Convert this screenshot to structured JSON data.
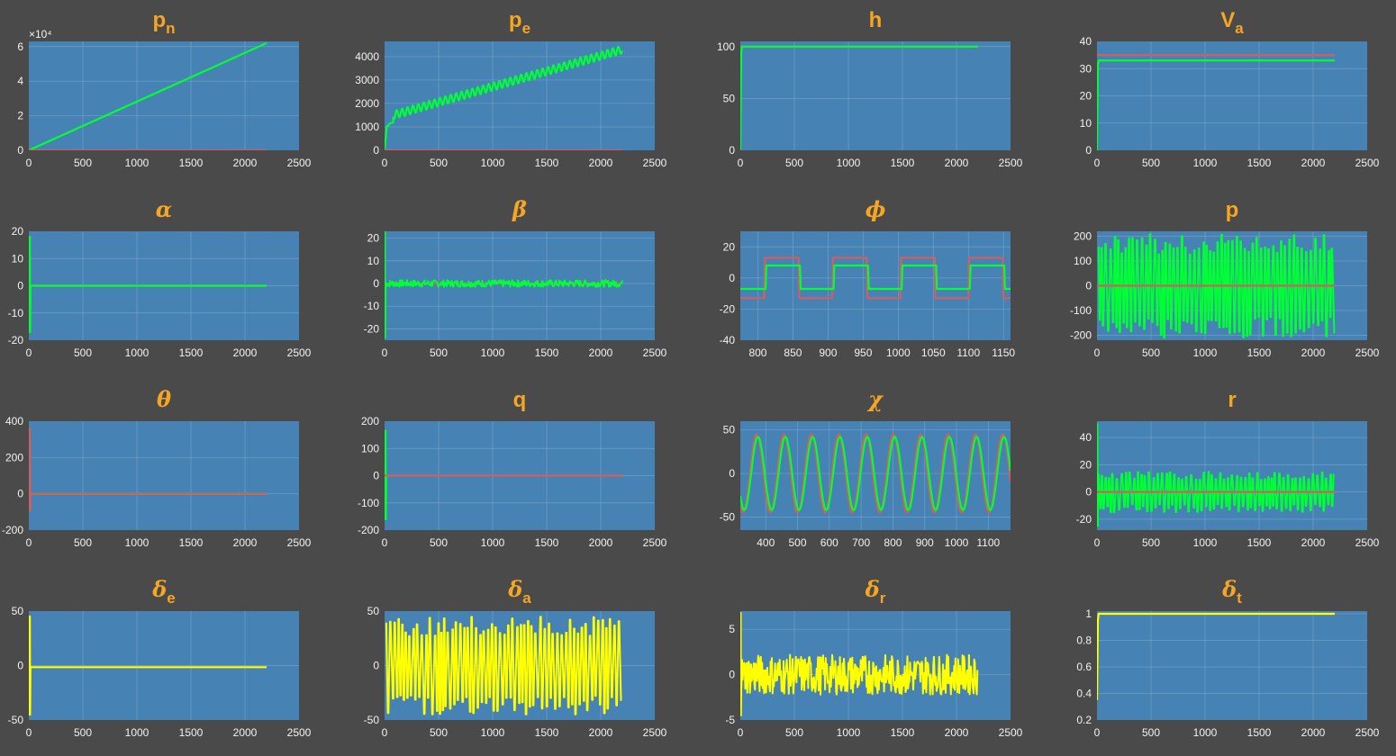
{
  "colors": {
    "background": "#4a4a4a",
    "axes": "#4682b4",
    "title": "#f5a623",
    "state": "#00ff33",
    "commanded": "#d06060",
    "input": "#ffff00"
  },
  "chart_data": [
    {
      "id": "pn",
      "type": "line",
      "title": "p",
      "title_sub": "n",
      "exponent_label": "×10⁴",
      "xlim": [
        0,
        2500
      ],
      "xticks": [
        "0",
        "500",
        "1000",
        "1500",
        "2000",
        "2500"
      ],
      "ylim": [
        0,
        6.3
      ],
      "yticks": [
        "0",
        "2",
        "4",
        "6"
      ],
      "series": [
        {
          "role": "actual",
          "kind": "ramp",
          "x": [
            0,
            2200
          ],
          "y": [
            0,
            6.2
          ]
        },
        {
          "role": "commanded",
          "kind": "const",
          "x": [
            0,
            2200
          ],
          "y": 0
        }
      ]
    },
    {
      "id": "pe",
      "type": "line",
      "title": "p",
      "title_sub": "e",
      "xlim": [
        0,
        2500
      ],
      "xticks": [
        "0",
        "500",
        "1000",
        "1500",
        "2000",
        "2500"
      ],
      "ylim": [
        0,
        4650
      ],
      "yticks": [
        "0",
        "1000",
        "2000",
        "3000",
        "4000"
      ],
      "series": [
        {
          "role": "actual",
          "kind": "wavy_ramp",
          "x": [
            0,
            2200
          ],
          "y": [
            1500,
            4300
          ],
          "amp": 170,
          "period": 50
        },
        {
          "role": "commanded",
          "kind": "const",
          "x": [
            0,
            2200
          ],
          "y": 0
        }
      ]
    },
    {
      "id": "h",
      "type": "line",
      "title": "h",
      "xlim": [
        0,
        2500
      ],
      "xticks": [
        "0",
        "500",
        "1000",
        "1500",
        "2000",
        "2500"
      ],
      "ylim": [
        0,
        105
      ],
      "yticks": [
        "0",
        "50",
        "100"
      ],
      "series": [
        {
          "role": "commanded",
          "kind": "const",
          "x": [
            0,
            2200
          ],
          "y": 100
        },
        {
          "role": "actual",
          "kind": "step",
          "x": [
            0,
            2200
          ],
          "y": 100
        }
      ]
    },
    {
      "id": "va",
      "type": "line",
      "title": "V",
      "title_sub": "a",
      "xlim": [
        0,
        2500
      ],
      "xticks": [
        "0",
        "500",
        "1000",
        "1500",
        "2000",
        "2500"
      ],
      "ylim": [
        0,
        40
      ],
      "yticks": [
        "0",
        "10",
        "20",
        "30",
        "40"
      ],
      "series": [
        {
          "role": "commanded",
          "kind": "const",
          "x": [
            0,
            2200
          ],
          "y": 35
        },
        {
          "role": "actual",
          "kind": "step",
          "x": [
            0,
            2200
          ],
          "y": 33
        }
      ]
    },
    {
      "id": "alpha",
      "type": "line",
      "title": "α",
      "xlim": [
        0,
        2500
      ],
      "xticks": [
        "0",
        "500",
        "1000",
        "1500",
        "2000",
        "2500"
      ],
      "ylim": [
        -20,
        20
      ],
      "yticks": [
        "-20",
        "-10",
        "0",
        "10",
        "20"
      ],
      "series": [
        {
          "role": "commanded",
          "kind": "const",
          "x": [
            0,
            2200
          ],
          "y": 0
        },
        {
          "role": "actual",
          "kind": "spike_flat",
          "x": [
            0,
            2200
          ],
          "y": 0,
          "spike": [
            -17,
            18
          ]
        }
      ]
    },
    {
      "id": "beta",
      "type": "line",
      "title": "β",
      "xlim": [
        0,
        2500
      ],
      "xticks": [
        "0",
        "500",
        "1000",
        "1500",
        "2000",
        "2500"
      ],
      "ylim": [
        -25,
        23
      ],
      "yticks": [
        "-20",
        "-10",
        "0",
        "10",
        "20"
      ],
      "series": [
        {
          "role": "commanded",
          "kind": "const",
          "x": [
            0,
            2200
          ],
          "y": 0
        },
        {
          "role": "actual",
          "kind": "noise",
          "x": [
            0,
            2200
          ],
          "y": 0,
          "amp": 1.5,
          "spike": [
            -24,
            23
          ]
        }
      ]
    },
    {
      "id": "phi",
      "type": "line",
      "title": "ϕ",
      "xlim": [
        775,
        1160
      ],
      "xticks": [
        "800",
        "850",
        "900",
        "950",
        "1000",
        "1050",
        "1100",
        "1150"
      ],
      "ylim": [
        -40,
        30
      ],
      "yticks": [
        "-40",
        "-20",
        "0",
        "20"
      ],
      "series": [
        {
          "role": "commanded",
          "kind": "square",
          "x": [
            775,
            1160
          ],
          "levels": [
            -13,
            13
          ],
          "period": 97,
          "phase": 810
        },
        {
          "role": "actual",
          "kind": "square",
          "x": [
            775,
            1160
          ],
          "levels": [
            -7,
            8
          ],
          "period": 97,
          "phase": 812
        }
      ]
    },
    {
      "id": "p",
      "type": "line",
      "title": "p",
      "xlim": [
        0,
        2500
      ],
      "xticks": [
        "0",
        "500",
        "1000",
        "1500",
        "2000",
        "2500"
      ],
      "ylim": [
        -220,
        220
      ],
      "yticks": [
        "-200",
        "-100",
        "0",
        "100",
        "200"
      ],
      "series": [
        {
          "role": "actual",
          "kind": "bang",
          "x": [
            0,
            2200
          ],
          "y": [
            -210,
            210
          ]
        },
        {
          "role": "commanded",
          "kind": "const",
          "x": [
            0,
            2200
          ],
          "y": 0
        }
      ]
    },
    {
      "id": "theta",
      "type": "line",
      "title": "θ",
      "xlim": [
        0,
        2500
      ],
      "xticks": [
        "0",
        "500",
        "1000",
        "1500",
        "2000",
        "2500"
      ],
      "ylim": [
        -200,
        400
      ],
      "yticks": [
        "-200",
        "0",
        "200",
        "400"
      ],
      "series": [
        {
          "role": "actual",
          "kind": "const",
          "x": [
            0,
            2200
          ],
          "y": 0
        },
        {
          "role": "commanded",
          "kind": "spike_flat",
          "x": [
            0,
            2200
          ],
          "y": 0,
          "spike": [
            -90,
            360
          ]
        }
      ]
    },
    {
      "id": "q",
      "type": "line",
      "title": "q",
      "xlim": [
        0,
        2500
      ],
      "xticks": [
        "0",
        "500",
        "1000",
        "1500",
        "2000",
        "2500"
      ],
      "ylim": [
        -200,
        200
      ],
      "yticks": [
        "-200",
        "-100",
        "0",
        "100",
        "200"
      ],
      "series": [
        {
          "role": "actual",
          "kind": "spike_flat",
          "x": [
            0,
            40
          ],
          "y": 0,
          "spike": [
            -160,
            165
          ]
        },
        {
          "role": "commanded",
          "kind": "const",
          "x": [
            0,
            2200
          ],
          "y": 0
        }
      ]
    },
    {
      "id": "chi",
      "type": "line",
      "title": "χ",
      "xlim": [
        320,
        1170
      ],
      "xticks": [
        "400",
        "500",
        "600",
        "700",
        "800",
        "900",
        "1000",
        "1100"
      ],
      "ylim": [
        -65,
        60
      ],
      "yticks": [
        "-50",
        "0",
        "50"
      ],
      "series": [
        {
          "role": "commanded",
          "kind": "sine",
          "x": [
            320,
            1170
          ],
          "amp": 45,
          "period": 86,
          "phase": 350
        },
        {
          "role": "actual",
          "kind": "sine",
          "x": [
            320,
            1170
          ],
          "amp": 42,
          "period": 86,
          "phase": 354
        }
      ]
    },
    {
      "id": "r",
      "type": "line",
      "title": "r",
      "xlim": [
        0,
        2500
      ],
      "xticks": [
        "0",
        "500",
        "1000",
        "1500",
        "2000",
        "2500"
      ],
      "ylim": [
        -28,
        52
      ],
      "yticks": [
        "-20",
        "0",
        "20",
        "40"
      ],
      "series": [
        {
          "role": "actual",
          "kind": "bang",
          "x": [
            0,
            2200
          ],
          "y": [
            -15,
            15
          ],
          "spike": [
            -25,
            50
          ]
        },
        {
          "role": "commanded",
          "kind": "const",
          "x": [
            0,
            2200
          ],
          "y": 0
        }
      ]
    },
    {
      "id": "de",
      "type": "line",
      "title": "δ",
      "title_sub": "e",
      "xlim": [
        0,
        2500
      ],
      "xticks": [
        "0",
        "500",
        "1000",
        "1500",
        "2000",
        "2500"
      ],
      "ylim": [
        -50,
        50
      ],
      "yticks": [
        "-50",
        "0",
        "50"
      ],
      "series": [
        {
          "role": "input",
          "kind": "spike_flat",
          "x": [
            0,
            2200
          ],
          "y": -1.5,
          "spike": [
            -45,
            45
          ]
        }
      ]
    },
    {
      "id": "da",
      "type": "line",
      "title": "δ",
      "title_sub": "a",
      "xlim": [
        0,
        2500
      ],
      "xticks": [
        "0",
        "500",
        "1000",
        "1500",
        "2000",
        "2500"
      ],
      "ylim": [
        -50,
        50
      ],
      "yticks": [
        "-50",
        "0",
        "50"
      ],
      "series": [
        {
          "role": "input",
          "kind": "bang",
          "x": [
            0,
            2200
          ],
          "y": [
            -45,
            45
          ]
        }
      ]
    },
    {
      "id": "dr",
      "type": "line",
      "title": "δ",
      "title_sub": "r",
      "xlim": [
        0,
        2500
      ],
      "xticks": [
        "0",
        "500",
        "1000",
        "1500",
        "2000",
        "2500"
      ],
      "ylim": [
        -5,
        7
      ],
      "yticks": [
        "-5",
        "0",
        "5"
      ],
      "series": [
        {
          "role": "input",
          "kind": "noise",
          "x": [
            0,
            2200
          ],
          "y": 0,
          "amp": 2.2,
          "spike": [
            -4.5,
            6.8
          ]
        }
      ]
    },
    {
      "id": "dt",
      "type": "line",
      "title": "δ",
      "title_sub": "t",
      "xlim": [
        0,
        2500
      ],
      "xticks": [
        "0",
        "500",
        "1000",
        "1500",
        "2000",
        "2500"
      ],
      "ylim": [
        0.2,
        1.02
      ],
      "yticks": [
        "0.2",
        "0.4",
        "0.6",
        "0.8",
        "1"
      ],
      "series": [
        {
          "role": "input",
          "kind": "step",
          "x": [
            0,
            2200
          ],
          "y": 1,
          "start": 0.35
        }
      ]
    }
  ]
}
